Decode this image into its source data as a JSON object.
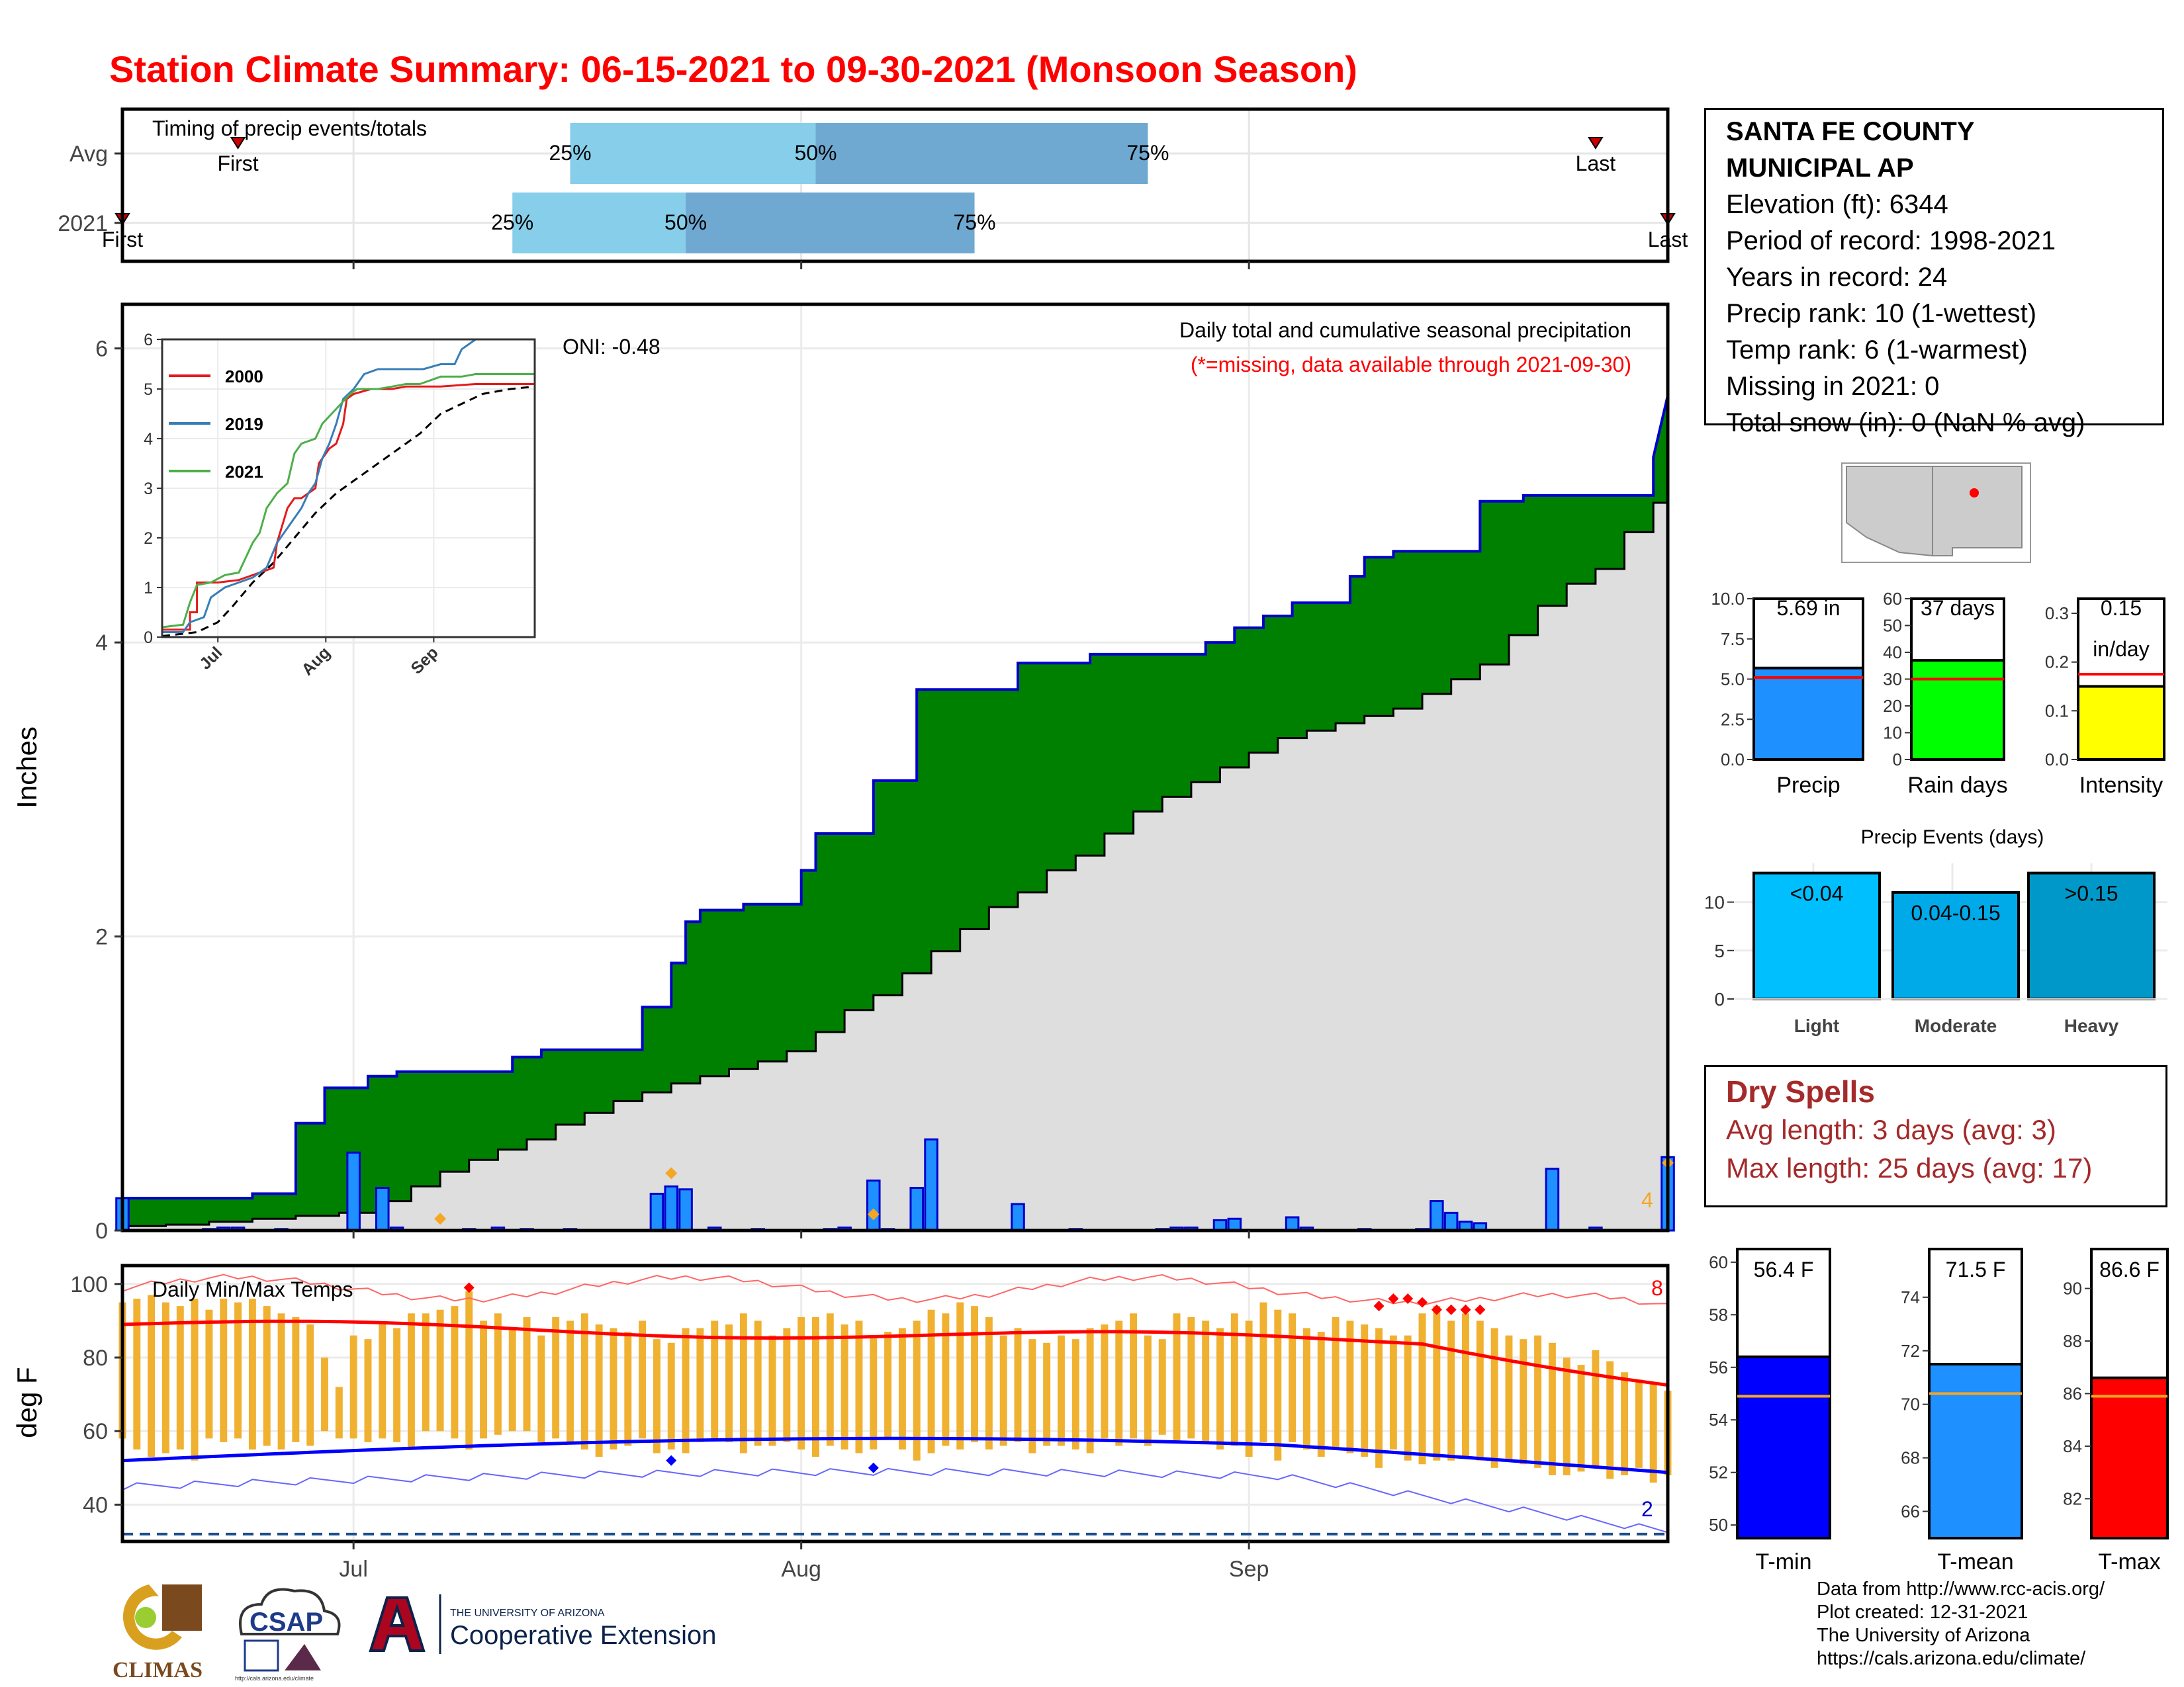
{
  "title": "Station Climate Summary: 06-15-2021 to 09-30-2021 (Monsoon Season)",
  "colors": {
    "title": "#ff0000",
    "cumulative_fill": "#008000",
    "avg_fill": "#dedede",
    "daily_bar": "#1e90ff",
    "precip_line": "#0000cd",
    "timing_light": "#87ceeb",
    "timing_dark": "#6fa8d0",
    "tmax_line": "#ff0000",
    "tmin_line": "#0000ff",
    "temp_bar": "#f0b030",
    "dry_spell": "#a52a2a"
  },
  "timing": {
    "title": "Timing of precip events/totals",
    "rows": [
      {
        "label": "Avg",
        "first": "First",
        "last": "Last",
        "first_date": "2021-06-23",
        "last_date": "2021-09-25",
        "p25": "2021-07-16",
        "p50": "2021-08-02",
        "p75": "2021-08-25",
        "pct_labels": [
          "25%",
          "50%",
          "75%"
        ]
      },
      {
        "label": "2021",
        "first": "First",
        "last": "Last",
        "first_date": "2021-06-15",
        "last_date": "2021-09-30",
        "p25": "2021-07-12",
        "p50": "2021-07-24",
        "p75": "2021-08-13",
        "pct_labels": [
          "25%",
          "50%",
          "75%"
        ]
      }
    ]
  },
  "precip_panel": {
    "ylabel": "Inches",
    "ylim": [
      0,
      6.3
    ],
    "yticks": [
      "0",
      "2",
      "4",
      "6"
    ],
    "oni": "ONI: -0.48",
    "caption": "Daily total and cumulative seasonal precipitation",
    "missing_note": "(*=missing, data available through 2021-09-30)",
    "extreme_count": "4"
  },
  "inset": {
    "yticks": [
      "0",
      "1",
      "2",
      "3",
      "4",
      "5",
      "6"
    ],
    "xticks": [
      "Jul",
      "Aug",
      "Sep"
    ],
    "legend": [
      {
        "name": "2000",
        "color": "#e41a1c"
      },
      {
        "name": "2019",
        "color": "#377eb8"
      },
      {
        "name": "2021",
        "color": "#4daf4a"
      }
    ]
  },
  "temp_panel": {
    "ylabel": "deg F",
    "title": "Daily Min/Max Temps",
    "yticks": [
      "40",
      "60",
      "80",
      "100"
    ],
    "ylim": [
      30,
      105
    ],
    "freeze_line": 32,
    "record_high_count": "8",
    "record_low_count": "2"
  },
  "x_axis": {
    "ticks": [
      "Jul",
      "Aug",
      "Sep"
    ]
  },
  "station": {
    "name_line1": "SANTA FE COUNTY",
    "name_line2": "MUNICIPAL AP",
    "elevation": "Elevation (ft): 6344",
    "period": "Period of record: 1998-2021",
    "years": "Years in record: 24",
    "precip_rank": "Precip rank: 10 (1-wettest)",
    "temp_rank": "Temp rank: 6 (1-warmest)",
    "missing": "Missing in 2021: 0",
    "snow": "Total snow (in): 0 (NaN % avg)"
  },
  "summary_bars": [
    {
      "label": "Precip",
      "value": 5.69,
      "avg": 5.1,
      "value_label": "5.69 in",
      "ymax": 10,
      "yticks": [
        "0.0",
        "2.5",
        "5.0",
        "7.5",
        "10.0"
      ],
      "color": "#1e90ff"
    },
    {
      "label": "Rain days",
      "value": 37,
      "avg": 30,
      "value_label": "37 days",
      "ymax": 60,
      "yticks": [
        "0",
        "10",
        "20",
        "30",
        "40",
        "50",
        "60"
      ],
      "color": "#00ff00"
    },
    {
      "label": "Intensity",
      "value": 0.15,
      "avg": 0.175,
      "value_label": "0.15",
      "value_unit": "in/day",
      "ymax": 0.33,
      "yticks": [
        "0.0",
        "0.1",
        "0.2",
        "0.3"
      ],
      "color": "#ffff00"
    }
  ],
  "events": {
    "title": "Precip Events (days)",
    "yticks": [
      "0",
      "5",
      "10"
    ],
    "bars": [
      {
        "label": "Light",
        "range": "<0.04",
        "value": 13,
        "color": "#00bfff"
      },
      {
        "label": "Moderate",
        "range": "0.04-0.15",
        "value": 11,
        "color": "#00a9e8"
      },
      {
        "label": "Heavy",
        "range": ">0.15",
        "value": 13,
        "color": "#0098c8"
      }
    ]
  },
  "dry_spells": {
    "title": "Dry Spells",
    "avg": "Avg length: 3 days (avg: 3)",
    "max": "Max length: 25 days (avg: 17)"
  },
  "temp_bars": [
    {
      "label": "T-min",
      "value": 56.4,
      "avg": 54.9,
      "value_label": "56.4 F",
      "ylim": [
        49.5,
        60.5
      ],
      "yticks": [
        "50",
        "52",
        "54",
        "56",
        "58",
        "60"
      ],
      "color": "#0000ff"
    },
    {
      "label": "T-mean",
      "value": 71.5,
      "avg": 70.4,
      "value_label": "71.5 F",
      "ylim": [
        65,
        75.8
      ],
      "yticks": [
        "66",
        "68",
        "70",
        "72",
        "74"
      ],
      "color": "#1e90ff"
    },
    {
      "label": "T-max",
      "value": 86.6,
      "avg": 85.9,
      "value_label": "86.6 F",
      "ylim": [
        80.5,
        91.5
      ],
      "yticks": [
        "82",
        "84",
        "86",
        "88",
        "90"
      ],
      "color": "#ff0000"
    }
  ],
  "credits": [
    "Data from http://www.rcc-acis.org/",
    "Plot created: 12-31-2021",
    "The University of Arizona",
    "https://cals.arizona.edu/climate/"
  ],
  "logos": {
    "climas": "CLIMAS",
    "csap": "CSAP",
    "csap_url": "http://cals.arizona.edu/climate",
    "ua_small": "THE UNIVERSITY OF ARIZONA",
    "ua_big": "Cooperative Extension"
  }
}
